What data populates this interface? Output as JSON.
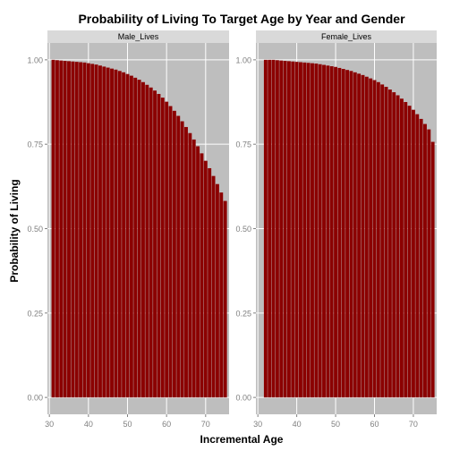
{
  "chart_data": {
    "type": "bar",
    "title": "Probability of Living To Target Age by Year and Gender",
    "xlabel": "Incremental Age",
    "ylabel": "Probability of Living",
    "xlim": [
      29.5,
      76
    ],
    "ylim": [
      -0.05,
      1.05
    ],
    "xticks": [
      30,
      40,
      50,
      60,
      70
    ],
    "yticks": [
      0.0,
      0.25,
      0.5,
      0.75,
      1.0
    ],
    "ytick_labels": [
      "0.00",
      "0.25",
      "0.50",
      "0.75",
      "1.00"
    ],
    "bar_color": "#8b0000",
    "panel_bg": "#bebebe",
    "strip_bg": "#d9d9d9",
    "grid_color": "#ffffff",
    "grid": true,
    "legend": "none",
    "x": [
      31,
      32,
      33,
      34,
      35,
      36,
      37,
      38,
      39,
      40,
      41,
      42,
      43,
      44,
      45,
      46,
      47,
      48,
      49,
      50,
      51,
      52,
      53,
      54,
      55,
      56,
      57,
      58,
      59,
      60,
      61,
      62,
      63,
      64,
      65,
      66,
      67,
      68,
      69,
      70,
      71,
      72,
      73,
      74,
      75
    ],
    "panels": [
      {
        "name": "Male_Lives",
        "values": [
          1.0,
          0.999,
          0.998,
          0.997,
          0.996,
          0.995,
          0.994,
          0.993,
          0.992,
          0.99,
          0.988,
          0.986,
          0.983,
          0.98,
          0.977,
          0.974,
          0.971,
          0.967,
          0.963,
          0.958,
          0.953,
          0.947,
          0.941,
          0.934,
          0.926,
          0.918,
          0.909,
          0.899,
          0.888,
          0.876,
          0.863,
          0.849,
          0.834,
          0.818,
          0.801,
          0.783,
          0.764,
          0.744,
          0.723,
          0.701,
          0.679,
          0.656,
          0.632,
          0.607,
          0.582
        ]
      },
      {
        "name": "Female_Lives",
        "values": [
          null,
          1.0,
          1.0,
          1.0,
          0.999,
          0.998,
          0.997,
          0.996,
          0.995,
          0.994,
          0.993,
          0.992,
          0.991,
          0.99,
          0.989,
          0.987,
          0.985,
          0.983,
          0.981,
          0.979,
          0.976,
          0.973,
          0.97,
          0.967,
          0.963,
          0.959,
          0.955,
          0.95,
          0.945,
          0.94,
          0.934,
          0.927,
          0.92,
          0.912,
          0.904,
          0.895,
          0.885,
          0.875,
          0.864,
          0.852,
          0.839,
          0.825,
          0.81,
          0.794,
          0.757
        ]
      }
    ]
  }
}
